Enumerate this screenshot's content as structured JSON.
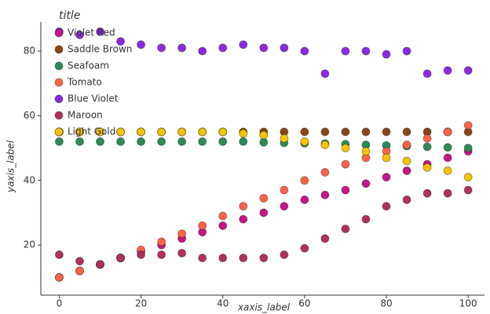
{
  "chart_data": {
    "type": "scatter",
    "title": "title",
    "x_label": "xaxis_label",
    "y_label": "yaxis_label",
    "x": [
      0,
      5,
      10,
      15,
      20,
      25,
      30,
      35,
      40,
      45,
      50,
      55,
      60,
      65,
      70,
      75,
      80,
      85,
      90,
      95,
      100
    ],
    "xlim": [
      -4.5,
      104
    ],
    "xticks": [
      0,
      20,
      40,
      60,
      80,
      100
    ],
    "ylim": [
      4.5,
      89
    ],
    "yticks": [
      20,
      40,
      60,
      80
    ],
    "grid": false,
    "legend": "upper left",
    "series": [
      {
        "name": "Violet Red",
        "color": "#c71585",
        "values": [
          10,
          12,
          14,
          16,
          18,
          20,
          22,
          24,
          26,
          28,
          30,
          32,
          34,
          35.5,
          37,
          39,
          41,
          43,
          45,
          47,
          49
        ]
      },
      {
        "name": "Saddle Brown",
        "color": "#8b4513",
        "values": [
          55,
          55,
          55,
          55,
          55,
          55,
          55,
          55,
          55,
          55,
          55,
          55,
          55,
          55,
          55,
          55,
          55,
          55,
          55,
          55,
          55
        ]
      },
      {
        "name": "Seafoam",
        "color": "#2e8b57",
        "values": [
          52,
          52,
          52,
          52,
          52,
          52,
          52,
          52,
          52,
          52,
          51.8,
          51.6,
          51.5,
          51.4,
          51.2,
          51,
          50.8,
          50.6,
          50.4,
          50.2,
          50
        ]
      },
      {
        "name": "Tomato",
        "color": "#ff6347",
        "values": [
          10,
          12,
          14,
          16,
          18.5,
          21,
          23.5,
          26,
          29,
          32,
          34.5,
          37,
          40,
          42.5,
          45,
          47,
          49,
          51,
          53,
          55,
          57
        ]
      },
      {
        "name": "Blue Violet",
        "color": "#8a2be2",
        "values": [
          86,
          85,
          86,
          83,
          82,
          81,
          81,
          80,
          81,
          82,
          81,
          81,
          80,
          73,
          80,
          80,
          79,
          80,
          73,
          74,
          74
        ]
      },
      {
        "name": "Maroon",
        "color": "#b03060",
        "values": [
          17,
          15,
          14,
          16,
          17,
          17,
          17.5,
          16,
          16,
          16,
          16,
          17,
          19,
          22,
          25,
          28,
          32,
          34,
          36,
          36,
          37
        ]
      },
      {
        "name": "Light Gold",
        "color": "#f5c400",
        "values": [
          55,
          55,
          55,
          55,
          55,
          55,
          55,
          55,
          55,
          54.5,
          54,
          53,
          52,
          51,
          50,
          49,
          47,
          46,
          44,
          43,
          41
        ]
      }
    ]
  }
}
